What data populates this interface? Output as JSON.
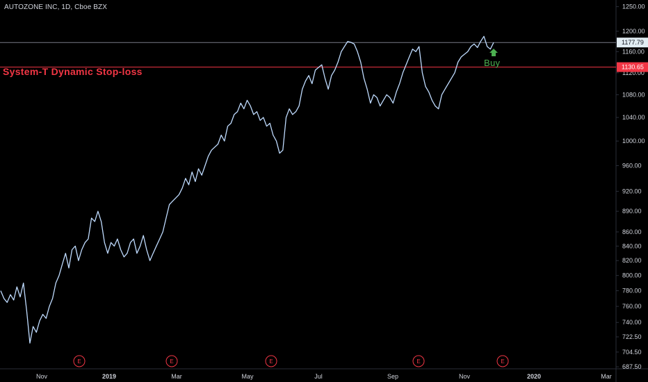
{
  "symbol_label": "AUTOZONE INC, 1D, Cboe BZX",
  "chart_data": {
    "type": "line",
    "title": "System-T Dynamic Stop-loss",
    "x_tick_labels": [
      "Nov",
      "2019",
      "Mar",
      "May",
      "Jul",
      "Sep",
      "Nov",
      "2020",
      "Mar"
    ],
    "y_tick_labels": [
      "1250.00",
      "1200.00",
      "1160.00",
      "1120.00",
      "1080.00",
      "1040.00",
      "1000.00",
      "960.00",
      "920.00",
      "890.00",
      "860.00",
      "840.00",
      "820.00",
      "800.00",
      "780.00",
      "760.00",
      "740.00",
      "722.50",
      "704.50",
      "687.50"
    ],
    "ylim": [
      680,
      1260
    ],
    "log_scale": true,
    "grid": false,
    "series": [
      {
        "values": [
          780,
          770,
          765,
          775,
          768,
          785,
          772,
          790,
          755,
          715,
          735,
          728,
          742,
          750,
          745,
          760,
          770,
          790,
          800,
          815,
          830,
          810,
          835,
          840,
          820,
          835,
          845,
          850,
          880,
          875,
          890,
          875,
          845,
          830,
          845,
          840,
          850,
          835,
          825,
          830,
          845,
          850,
          830,
          840,
          855,
          835,
          820,
          830,
          840,
          850,
          860,
          880,
          900,
          905,
          910,
          915,
          925,
          940,
          930,
          950,
          935,
          955,
          945,
          960,
          975,
          985,
          990,
          995,
          1010,
          1000,
          1025,
          1030,
          1045,
          1050,
          1065,
          1055,
          1070,
          1060,
          1045,
          1050,
          1035,
          1040,
          1025,
          1030,
          1010,
          1000,
          980,
          985,
          1040,
          1055,
          1045,
          1050,
          1060,
          1090,
          1105,
          1115,
          1100,
          1125,
          1130,
          1135,
          1110,
          1090,
          1115,
          1125,
          1140,
          1160,
          1170,
          1180,
          1178,
          1175,
          1160,
          1140,
          1110,
          1090,
          1065,
          1080,
          1075,
          1060,
          1070,
          1080,
          1075,
          1065,
          1085,
          1100,
          1120,
          1135,
          1150,
          1165,
          1160,
          1170,
          1120,
          1095,
          1085,
          1070,
          1060,
          1055,
          1080,
          1090,
          1100,
          1110,
          1120,
          1140,
          1150,
          1155,
          1160,
          1170,
          1175,
          1168,
          1180,
          1190,
          1170,
          1165,
          1177.79
        ],
        "color": "#bfdbfe"
      }
    ],
    "horizontal_lines": [
      {
        "value": 1177.79,
        "label": "1177.79",
        "color": "#787b86",
        "badge_bg": "#e1ecf2",
        "badge_fg": "#131722"
      },
      {
        "value": 1130.65,
        "label": "1130.65",
        "color": "#f23645",
        "badge_bg": "#f23645",
        "badge_fg": "#ffffff"
      }
    ],
    "annotations": [
      {
        "text": "Buy",
        "color": "#4caf50"
      }
    ],
    "earnings_markers": [
      "E",
      "E",
      "E",
      "E",
      "E"
    ]
  },
  "colors": {
    "background": "#000000",
    "text": "#d1d4dc",
    "axis_line": "#2a2e39"
  }
}
